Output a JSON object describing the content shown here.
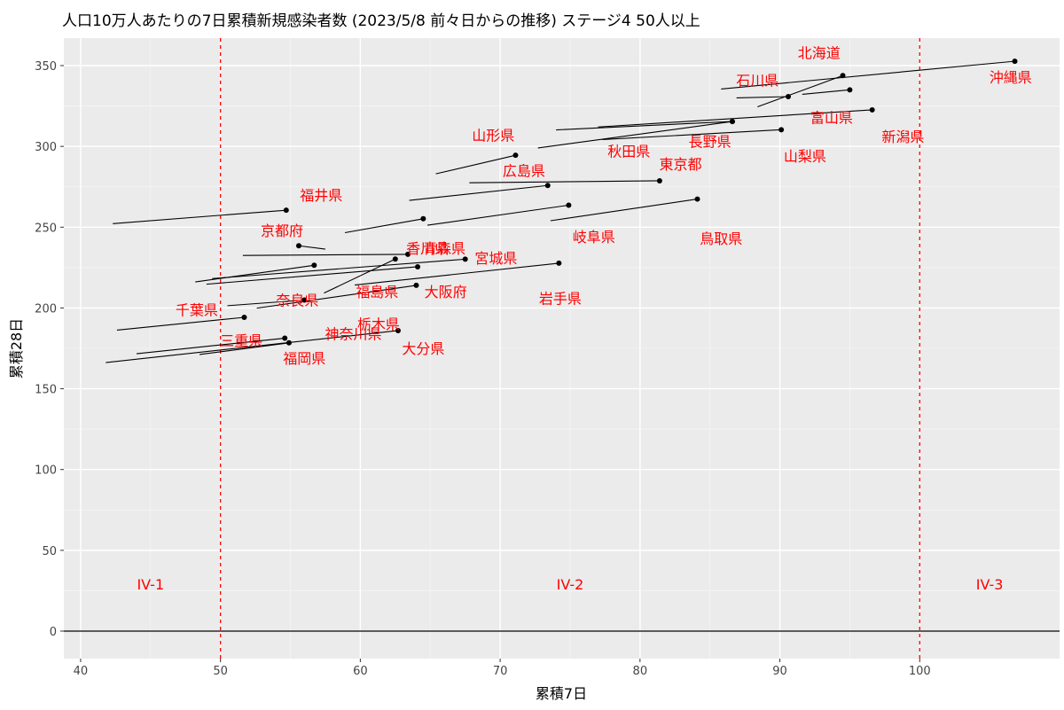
{
  "chart_data": {
    "type": "scatter",
    "title": "人口10万人あたりの7日累積新規感染者数 (2023/5/8  前々日からの推移) ステージ4   50人以上",
    "xlabel": "累積7日",
    "ylabel": "累積28日",
    "xlim": [
      38.8,
      110
    ],
    "ylim": [
      -17,
      367
    ],
    "x_ticks": [
      40,
      50,
      60,
      70,
      80,
      90,
      100
    ],
    "y_ticks": [
      0,
      50,
      100,
      150,
      200,
      250,
      300,
      350
    ],
    "grid": true,
    "reference_lines": [
      {
        "axis": "x",
        "value": 50,
        "style": "dashed",
        "color": "#ff0000"
      },
      {
        "axis": "x",
        "value": 100,
        "style": "dashed",
        "color": "#ff0000"
      },
      {
        "axis": "y",
        "value": 0,
        "style": "solid",
        "color": "#000000"
      }
    ],
    "stage_labels": [
      {
        "text": "IV-1",
        "x": 45,
        "y": 29
      },
      {
        "text": "IV-2",
        "x": 75,
        "y": 29
      },
      {
        "text": "IV-3",
        "x": 105,
        "y": 29
      }
    ],
    "label_color": "#ff0000",
    "point_color": "#000000",
    "series": [
      {
        "name": "沖縄県",
        "path": [
          [
            85.8,
            335.5
          ],
          [
            106.8,
            352.7
          ]
        ],
        "label": [
          106.5,
          343
        ]
      },
      {
        "name": "北海道",
        "path": [
          [
            88.4,
            324.5
          ],
          [
            94.5,
            343.8
          ]
        ],
        "label": [
          92.8,
          358
        ]
      },
      {
        "name": "石川県",
        "path": [
          [
            86.9,
            330
          ],
          [
            90.6,
            330.8
          ]
        ],
        "label": [
          88.4,
          341
        ]
      },
      {
        "name": "富山県",
        "path": [
          [
            91.6,
            332.2
          ],
          [
            95.0,
            335.0
          ]
        ],
        "label": [
          93.7,
          318
        ]
      },
      {
        "name": "新潟県",
        "path": [
          [
            77.0,
            312.0
          ],
          [
            96.6,
            322.6
          ]
        ],
        "label": [
          98.8,
          306
        ]
      },
      {
        "name": "山梨県",
        "path": [
          [
            77.3,
            304.2
          ],
          [
            90.1,
            310.3
          ]
        ],
        "label": [
          91.8,
          294
        ]
      },
      {
        "name": "長野県",
        "path": [
          [
            74.0,
            310.2
          ],
          [
            86.6,
            315.4
          ]
        ],
        "label": [
          85.0,
          303
        ]
      },
      {
        "name": "秋田県",
        "path": [
          [
            72.7,
            299.0
          ],
          [
            86.6,
            315.4
          ]
        ],
        "label": [
          79.2,
          297
        ]
      },
      {
        "name": "山形県",
        "path": [
          [
            65.4,
            283.0
          ],
          [
            71.1,
            294.5
          ]
        ],
        "label": [
          69.5,
          307
        ]
      },
      {
        "name": "広島県",
        "path": [
          [
            63.5,
            266.6
          ],
          [
            73.4,
            275.8
          ]
        ],
        "label": [
          71.7,
          285
        ]
      },
      {
        "name": "東京都",
        "path": [
          [
            67.8,
            277.5
          ],
          [
            81.4,
            278.7
          ]
        ],
        "label": [
          82.9,
          289
        ]
      },
      {
        "name": "福井県",
        "path": [
          [
            42.3,
            252.2
          ],
          [
            54.7,
            260.5
          ]
        ],
        "label": [
          57.2,
          270
        ]
      },
      {
        "name": "青森県",
        "path": [
          [
            58.9,
            246.6
          ],
          [
            64.5,
            255.2
          ]
        ],
        "label": [
          66.0,
          237
        ]
      },
      {
        "name": "鳥取県",
        "path": [
          [
            73.6,
            254.0
          ],
          [
            84.1,
            267.4
          ]
        ],
        "label": [
          85.8,
          243
        ]
      },
      {
        "name": "岐阜県",
        "path": [
          [
            64.8,
            251.2
          ],
          [
            74.9,
            263.6
          ]
        ],
        "label": [
          76.7,
          244
        ]
      },
      {
        "name": "京都府",
        "path": [
          [
            57.5,
            236.4
          ],
          [
            55.6,
            238.5
          ]
        ],
        "label": [
          54.4,
          248
        ]
      },
      {
        "name": "香川県",
        "path": [
          [
            51.6,
            232.5
          ],
          [
            63.4,
            233.2
          ]
        ],
        "label": [
          64.8,
          237
        ]
      },
      {
        "name": "宮城県",
        "path": [
          [
            49.4,
            218.2
          ],
          [
            67.5,
            230.2
          ]
        ],
        "label": [
          69.7,
          231
        ]
      },
      {
        "name": "福島県",
        "path": [
          [
            49.0,
            214.7
          ],
          [
            64.1,
            225.5
          ]
        ],
        "label": [
          61.2,
          210
        ]
      },
      {
        "name": "奈良県",
        "path": [
          [
            48.2,
            216.1
          ],
          [
            56.7,
            226.4
          ]
        ],
        "label": [
          55.5,
          205
        ]
      },
      {
        "name": "大阪府",
        "path": [
          [
            57.4,
            209.2
          ],
          [
            62.5,
            230.3
          ]
        ],
        "label": [
          66.1,
          210
        ]
      },
      {
        "name": "岩手県",
        "path": [
          [
            59.6,
            214.2
          ],
          [
            74.2,
            227.7
          ]
        ],
        "label": [
          74.3,
          206
        ]
      },
      {
        "name": "栃木県",
        "path": [
          [
            52.6,
            199.9
          ],
          [
            64.0,
            214.0
          ]
        ],
        "label": [
          61.3,
          190
        ]
      },
      {
        "name": "千葉県",
        "path": [
          [
            42.6,
            186.3
          ],
          [
            51.7,
            194.2
          ]
        ],
        "label": [
          48.3,
          199
        ]
      },
      {
        "name": "神奈川県",
        "path": [
          [
            50.5,
            201.4
          ],
          [
            56.0,
            204.9
          ]
        ],
        "label": [
          59.5,
          184
        ]
      },
      {
        "name": "三重県",
        "path": [
          [
            44.0,
            171.7
          ],
          [
            54.6,
            181.3
          ]
        ],
        "label": [
          51.5,
          180
        ]
      },
      {
        "name": "福岡県",
        "path": [
          [
            48.5,
            171.2
          ],
          [
            54.9,
            178.4
          ]
        ],
        "label": [
          56.0,
          169
        ]
      },
      {
        "name": "大分県",
        "path": [
          [
            41.8,
            166.2
          ],
          [
            62.7,
            186.0
          ]
        ],
        "label": [
          64.5,
          175
        ]
      }
    ]
  }
}
